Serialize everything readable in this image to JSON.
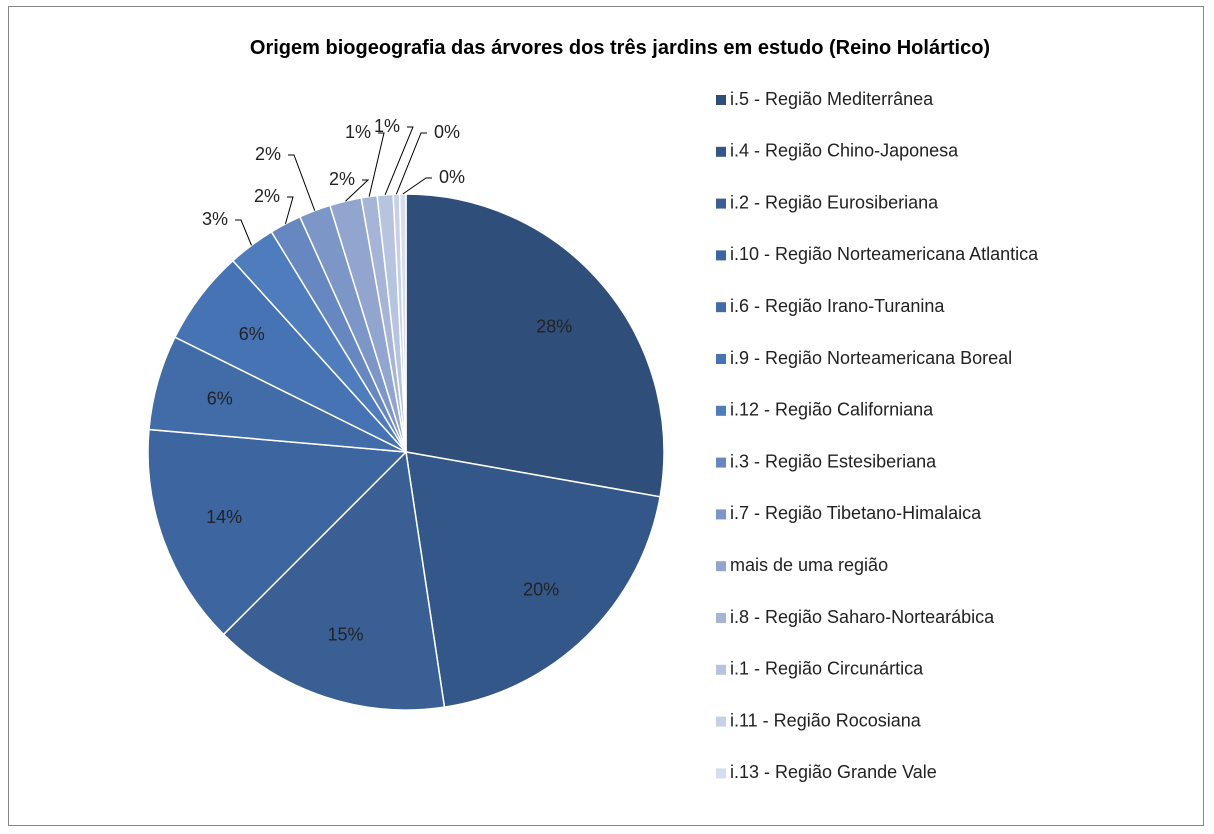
{
  "chart_data": {
    "type": "pie",
    "title": "Origem biogeografia das árvores dos três jardins em estudo (Reino Holártico)",
    "categories": [
      "i.5 - Região Mediterrânea",
      "i.4 - Região Chino-Japonesa",
      "i.2 - Região Eurosiberiana",
      "i.10 - Região Norteamericana Atlantica",
      "i.6 - Região Irano-Turanina",
      "i.9 - Região Norteamericana Boreal",
      "i.12 - Região Californiana",
      "i.3 - Região Estesiberiana",
      "i.7 - Região Tibetano-Himalaica",
      "mais de uma região",
      "i.8 - Região Saharo-Nortearábica",
      "i.1 - Região Circunártica",
      "i.11 - Região Rocosiana",
      "i.13 - Região Grande Vale"
    ],
    "values": [
      28,
      20,
      15,
      14,
      6,
      6,
      3,
      2,
      2,
      2,
      1,
      1,
      0.4,
      0.4
    ],
    "value_labels": [
      "28%",
      "20%",
      "15%",
      "14%",
      "6%",
      "6%",
      "3%",
      "2%",
      "2%",
      "2%",
      "1%",
      "1%",
      "0%",
      "0%"
    ],
    "colors": [
      "#2f4f7a",
      "#34578a",
      "#3a5f94",
      "#3d66a0",
      "#416ca8",
      "#4673b3",
      "#4e7cbd",
      "#6687c0",
      "#7d96c8",
      "#92a5cf",
      "#a6b5d7",
      "#b7c4df",
      "#c6d0e6",
      "#d5ddee"
    ],
    "legend": "right"
  }
}
